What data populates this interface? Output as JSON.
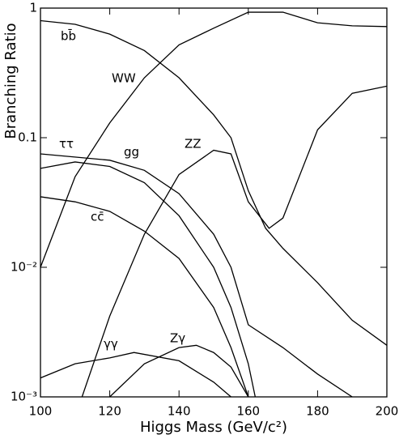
{
  "chart_data": {
    "type": "line",
    "xlabel": "Higgs Mass (GeV/c²)",
    "ylabel": "Branching Ratio",
    "xlim": [
      100,
      200
    ],
    "xticks": [
      100,
      120,
      140,
      160,
      180,
      200
    ],
    "ylim": [
      0.001,
      1
    ],
    "yscale": "log",
    "yticks": [
      {
        "value": 0.001,
        "label": "10⁻³"
      },
      {
        "value": 0.01,
        "label": "10⁻²"
      },
      0.1,
      1
    ],
    "series": [
      {
        "name": "bb̄",
        "color": "#000000",
        "x": [
          100,
          110,
          120,
          130,
          140,
          150,
          155,
          160,
          165,
          170,
          180,
          190,
          200
        ],
        "values": [
          0.8,
          0.75,
          0.63,
          0.47,
          0.29,
          0.15,
          0.1,
          0.039,
          0.02,
          0.014,
          0.0076,
          0.0039,
          0.0025
        ]
      },
      {
        "name": "WW",
        "color": "#000000",
        "x": [
          100,
          110,
          120,
          130,
          140,
          150,
          160,
          170,
          180,
          190,
          200
        ],
        "values": [
          0.01,
          0.05,
          0.13,
          0.29,
          0.52,
          0.7,
          0.93,
          0.93,
          0.77,
          0.73,
          0.72
        ]
      },
      {
        "name": "ττ",
        "color": "#000000",
        "x": [
          100,
          120,
          130,
          140,
          150,
          155,
          160,
          170,
          180,
          190
        ],
        "values": [
          0.075,
          0.067,
          0.056,
          0.037,
          0.018,
          0.01,
          0.0036,
          0.0024,
          0.0015,
          0.001
        ]
      },
      {
        "name": "gg",
        "color": "#000000",
        "x": [
          100,
          110,
          120,
          130,
          140,
          150,
          155,
          160,
          162
        ],
        "values": [
          0.058,
          0.065,
          0.06,
          0.045,
          0.025,
          0.01,
          0.0049,
          0.0018,
          0.001
        ]
      },
      {
        "name": "ZZ",
        "color": "#000000",
        "x": [
          112,
          120,
          130,
          140,
          150,
          155,
          160,
          166,
          170,
          180,
          190,
          200
        ],
        "values": [
          0.001,
          0.0042,
          0.018,
          0.052,
          0.08,
          0.075,
          0.032,
          0.02,
          0.024,
          0.115,
          0.22,
          0.25
        ]
      },
      {
        "name": "cc̄",
        "color": "#000000",
        "x": [
          100,
          110,
          120,
          130,
          140,
          150,
          155,
          160
        ],
        "values": [
          0.035,
          0.032,
          0.027,
          0.019,
          0.0117,
          0.0049,
          0.0024,
          0.001
        ]
      },
      {
        "name": "γγ",
        "color": "#000000",
        "x": [
          100,
          110,
          120,
          127,
          140,
          150,
          155
        ],
        "values": [
          0.0014,
          0.0018,
          0.002,
          0.0022,
          0.0019,
          0.0013,
          0.001
        ]
      },
      {
        "name": "Zγ",
        "color": "#000000",
        "x": [
          120,
          130,
          140,
          145,
          150,
          155,
          160
        ],
        "values": [
          0.001,
          0.0018,
          0.0024,
          0.0025,
          0.0022,
          0.0017,
          0.001
        ]
      }
    ]
  }
}
